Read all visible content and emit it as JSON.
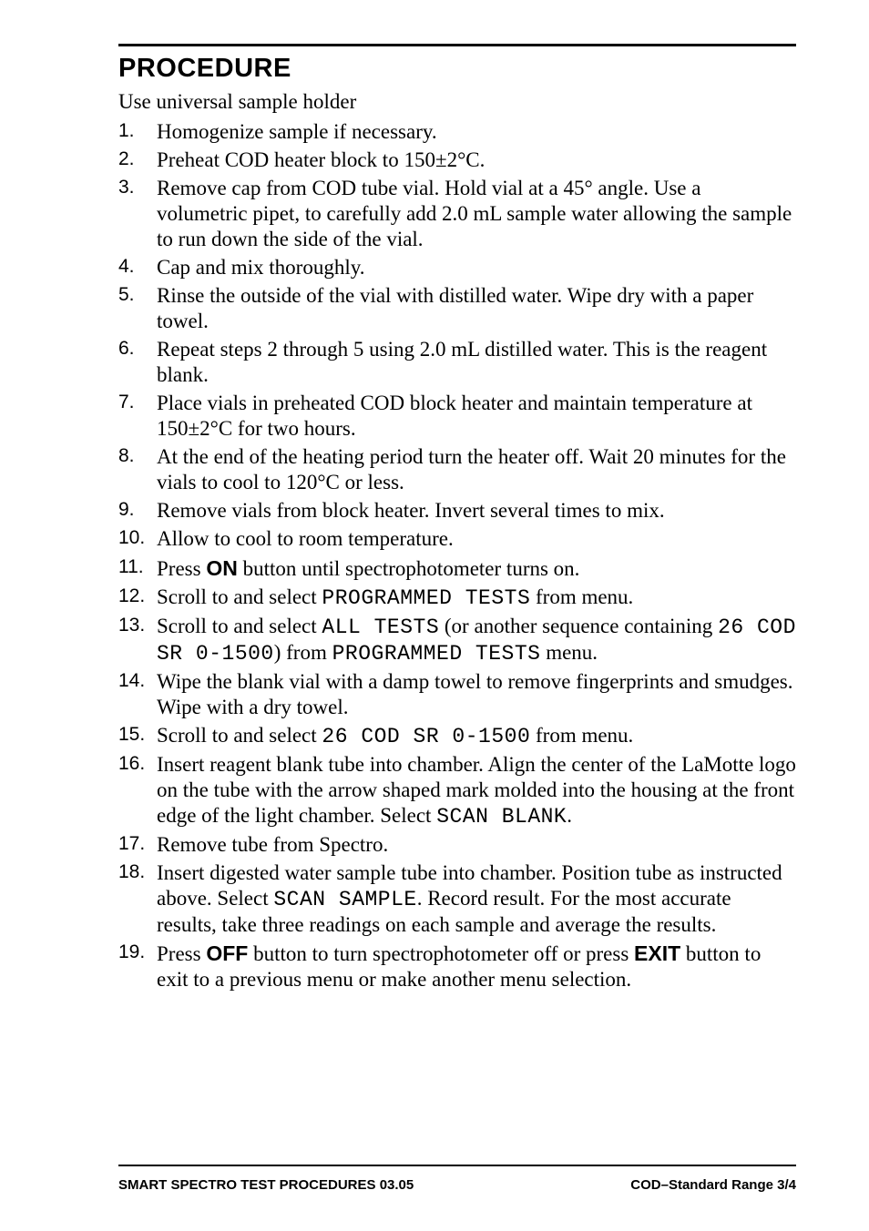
{
  "heading": "PROCEDURE",
  "intro": "Use universal sample holder",
  "steps": [
    {
      "n": "1.",
      "text": [
        "Homogenize sample if necessary."
      ]
    },
    {
      "n": "2.",
      "text": [
        "Preheat COD heater block to 150±2°C."
      ]
    },
    {
      "n": "3.",
      "text": [
        "Remove cap from COD tube vial. Hold vial at a 45° angle. Use a volumetric pipet, to carefully add 2.0 mL sample water allowing the sample to run down the side of the vial."
      ]
    },
    {
      "n": "4.",
      "text": [
        "Cap and mix thoroughly."
      ]
    },
    {
      "n": "5.",
      "text": [
        "Rinse the outside of the vial with distilled water. Wipe dry with a paper towel."
      ]
    },
    {
      "n": "6.",
      "text": [
        "Repeat steps 2 through 5 using 2.0 mL distilled water. This is the reagent blank."
      ]
    },
    {
      "n": "7.",
      "text": [
        "Place vials in preheated COD block heater and maintain temperature at 150±2°C for two hours."
      ]
    },
    {
      "n": "8.",
      "text": [
        "At the end of the heating period turn the heater off. Wait 20 minutes for the vials to cool to 120°C or less."
      ]
    },
    {
      "n": "9.",
      "text": [
        "Remove vials from block heater. Invert several times to mix."
      ]
    },
    {
      "n": "10.",
      "text": [
        "Allow to cool to room temperature."
      ]
    },
    {
      "n": "11.",
      "parts": [
        {
          "t": "Press ",
          "c": ""
        },
        {
          "t": "ON",
          "c": "bold-sans"
        },
        {
          "t": " button until spectrophotometer turns on.",
          "c": ""
        }
      ]
    },
    {
      "n": "12.",
      "parts": [
        {
          "t": "Scroll to and select ",
          "c": ""
        },
        {
          "t": "PROGRAMMED TESTS",
          "c": "mono"
        },
        {
          "t": " from menu.",
          "c": ""
        }
      ]
    },
    {
      "n": "13.",
      "parts": [
        {
          "t": "Scroll to and select ",
          "c": ""
        },
        {
          "t": "ALL TESTS",
          "c": "mono"
        },
        {
          "t": " (or another sequence containing ",
          "c": ""
        },
        {
          "t": "26 COD SR 0-1500",
          "c": "mono"
        },
        {
          "t": ") from ",
          "c": ""
        },
        {
          "t": "PROGRAMMED TESTS",
          "c": "mono"
        },
        {
          "t": " menu.",
          "c": ""
        }
      ]
    },
    {
      "n": "14.",
      "text": [
        "Wipe the blank vial with a damp towel to remove fingerprints and smudges. Wipe with a dry towel."
      ]
    },
    {
      "n": "15.",
      "parts": [
        {
          "t": "Scroll to and select ",
          "c": ""
        },
        {
          "t": "26 COD SR 0-1500",
          "c": "mono"
        },
        {
          "t": " from menu.",
          "c": ""
        }
      ]
    },
    {
      "n": "16.",
      "parts": [
        {
          "t": "Insert reagent blank tube into chamber. Align the center of the LaMotte logo on the tube with the arrow shaped mark molded into the housing at the front edge of the light chamber. Select ",
          "c": ""
        },
        {
          "t": "SCAN BLANK",
          "c": "mono"
        },
        {
          "t": ".",
          "c": ""
        }
      ]
    },
    {
      "n": "17.",
      "text": [
        "Remove tube from Spectro."
      ]
    },
    {
      "n": "18.",
      "parts": [
        {
          "t": "Insert digested water sample tube into chamber. Position tube as instructed above. Select ",
          "c": ""
        },
        {
          "t": "SCAN SAMPLE",
          "c": "mono"
        },
        {
          "t": ". Record result. For the most accurate results, take three readings on each sample and average the results.",
          "c": ""
        }
      ]
    },
    {
      "n": "19.",
      "parts": [
        {
          "t": "Press ",
          "c": ""
        },
        {
          "t": "OFF",
          "c": "bold-sans"
        },
        {
          "t": " button to turn spectrophotometer off or press ",
          "c": ""
        },
        {
          "t": "EXIT",
          "c": "bold-sans"
        },
        {
          "t": " button to exit to a previous menu or make another menu selection.",
          "c": ""
        }
      ]
    }
  ],
  "footer_left": "SMART SPECTRO TEST PROCEDURES  03.05",
  "footer_right": "COD–Standard Range 3/4",
  "colors": {
    "text": "#000000",
    "background": "#ffffff"
  },
  "fonts": {
    "body_family": "Georgia serif",
    "body_size_pt": 17,
    "heading_family": "Arial Black",
    "heading_size_pt": 22,
    "num_family": "Arial",
    "num_size_pt": 16,
    "mono_family": "Courier New",
    "footer_family": "Arial",
    "footer_size_pt": 11
  }
}
